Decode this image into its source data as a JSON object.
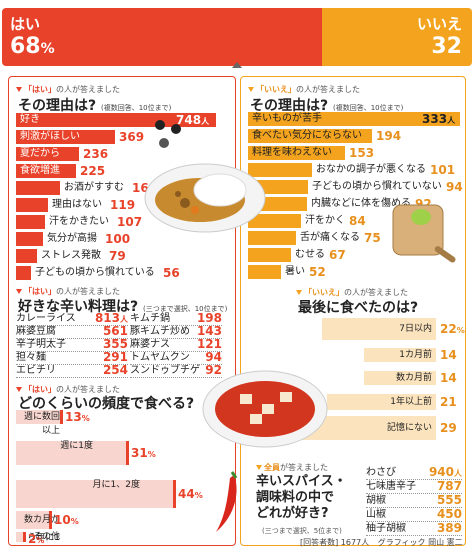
{
  "header": {
    "yes_label": "はい",
    "yes_pct": "68",
    "pct_unit": "%",
    "no_label": "いいえ",
    "no_pct": "32",
    "colors": {
      "yes": "#e8432a",
      "no": "#f3a31d"
    }
  },
  "chart_data": [
    {
      "id": "yes_reasons",
      "type": "bar",
      "tag_prefix": "「はい」",
      "tag_suffix": "の人が答えました",
      "title": "その理由は?",
      "note": "(複数回答、10位まで)",
      "categories": [
        "好き",
        "刺激がほしい",
        "夏だから",
        "食欲増進",
        "お酒がすすむ",
        "理由はない",
        "汗をかきたい",
        "気分が高揚",
        "ストレス発散",
        "子どもの頃から慣れている"
      ],
      "values": [
        748,
        369,
        236,
        225,
        164,
        119,
        107,
        100,
        79,
        56
      ],
      "first_unit": "人",
      "xlim": [
        0,
        748
      ]
    },
    {
      "id": "no_reasons",
      "type": "bar",
      "tag_prefix": "「いいえ」",
      "tag_suffix": "の人が答えました",
      "title": "その理由は?",
      "note": "(複数回答、10位まで)",
      "categories": [
        "辛いものが苦手",
        "食べたい気分にならない",
        "料理を味わえない",
        "おなかの調子が悪くなる",
        "子どもの頃から慣れていない",
        "内臓などに体を傷める",
        "汗をかく",
        "舌が痛くなる",
        "むせる",
        "暑い"
      ],
      "values": [
        333,
        194,
        153,
        101,
        94,
        92,
        84,
        75,
        67,
        52
      ],
      "first_unit": "人",
      "xlim": [
        0,
        333
      ]
    },
    {
      "id": "favorite_dishes",
      "type": "table",
      "tag_prefix": "「はい」",
      "tag_suffix": "の人が答えました",
      "title": "好きな辛い料理は?",
      "note": "(三つまで選択、10位まで)",
      "first_unit": "人",
      "left": [
        {
          "name": "カレーライス",
          "value": 813
        },
        {
          "name": "麻婆豆腐",
          "value": 561
        },
        {
          "name": "辛子明太子",
          "value": 355
        },
        {
          "name": "担々麺",
          "value": 291
        },
        {
          "name": "エビチリ",
          "value": 254
        }
      ],
      "right": [
        {
          "name": "キムチ鍋",
          "value": 198
        },
        {
          "name": "豚キムチ炒め",
          "value": 143
        },
        {
          "name": "麻婆ナス",
          "value": 121
        },
        {
          "name": "トムヤムクン",
          "value": 94
        },
        {
          "name": "スンドゥブチゲ",
          "value": 92
        }
      ]
    },
    {
      "id": "yes_frequency",
      "type": "bar",
      "tag_prefix": "「はい」",
      "tag_suffix": "の人が答えました",
      "title": "どのくらいの頻度で食べる?",
      "categories": [
        "週に数回以上",
        "週に1度",
        "月に1、2度",
        "数カ月から年に1度程度",
        "その他"
      ],
      "values": [
        13,
        31,
        44,
        10,
        2
      ],
      "unit": "%",
      "xlim": [
        0,
        44
      ]
    },
    {
      "id": "no_last_ate",
      "type": "bar",
      "tag_prefix": "「いいえ」",
      "tag_suffix": "の人が答えました",
      "title": "最後に食べたのは?",
      "categories": [
        "7日以内",
        "1カ月前",
        "数カ月前",
        "1年以上前",
        "記憶にない"
      ],
      "values": [
        22,
        14,
        14,
        21,
        29
      ],
      "unit": "%",
      "xlim": [
        0,
        29
      ]
    },
    {
      "id": "all_spices",
      "type": "table",
      "tag_prefix": "全員",
      "tag_suffix": "が答えました",
      "title_lines": [
        "辛いスパイス・",
        "調味料の中で",
        "どれが好き?"
      ],
      "note": "(三つまで選択、5位まで)",
      "first_unit": "人",
      "rows": [
        {
          "name": "わさび",
          "value": 940
        },
        {
          "name": "七味唐辛子",
          "value": 787
        },
        {
          "name": "胡椒",
          "value": 555
        },
        {
          "name": "山椒",
          "value": 450
        },
        {
          "name": "柚子胡椒",
          "value": 389
        }
      ]
    }
  ],
  "footer": {
    "respondents_label": "回答者数",
    "respondents": "1677人",
    "credit_label": "グラフィック",
    "credit": "岡山 憲二"
  }
}
